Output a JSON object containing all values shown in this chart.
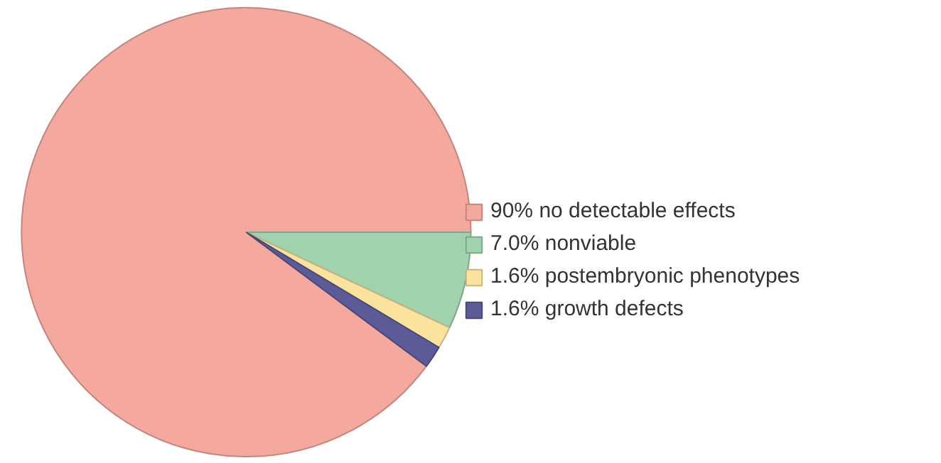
{
  "chart_data": {
    "type": "pie",
    "categories": [
      "no detectable effects",
      "nonviable",
      "postembryonic phenotypes",
      "growth defects"
    ],
    "values": [
      90,
      7.0,
      1.6,
      1.6
    ],
    "value_labels": [
      "90%",
      "7.0%",
      "1.6%",
      "1.6%"
    ],
    "colors": [
      "#f5a89e",
      "#9fd2ad",
      "#fbe29d",
      "#5c5b98"
    ],
    "legend": "right"
  }
}
